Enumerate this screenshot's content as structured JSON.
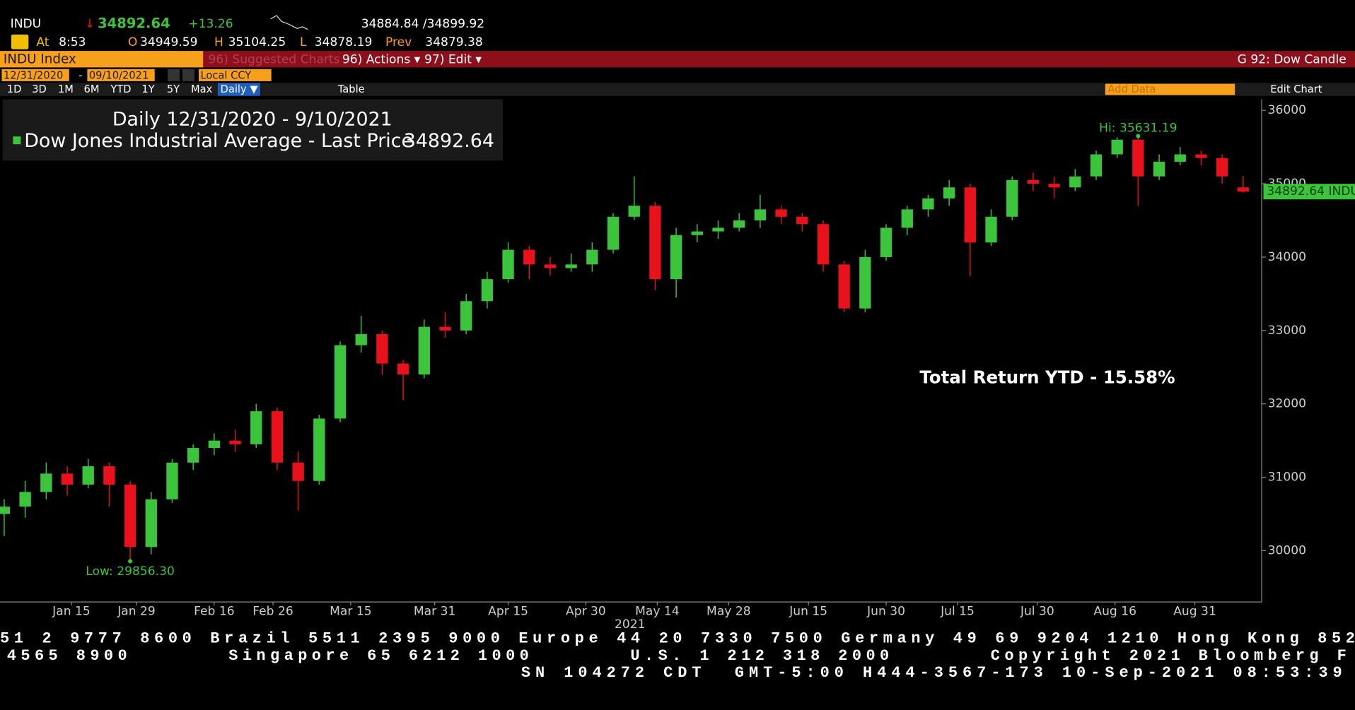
{
  "header": {
    "ticker": "INDU",
    "arrow": "↓",
    "last": "34892.64",
    "change": "+13.26",
    "bidask": "34884.84 /34899.92",
    "at": "At",
    "time": "8:53",
    "o_label": "O",
    "open": "34949.59",
    "h_label": "H",
    "high": "35104.25",
    "l_label": "L",
    "low": "34878.19",
    "prev_label": "Prev",
    "prev": "34879.38"
  },
  "menu": {
    "security": "INDU Index",
    "suggested": "96) Suggested Charts",
    "actions": "96) Actions ▾",
    "edit": "97) Edit ▾",
    "function": "G 92: Dow Candle"
  },
  "toolbar": {
    "start_date": "12/31/2020",
    "dash": "-",
    "end_date": "09/10/2021",
    "currency": "Local CCY",
    "ranges": [
      "1D",
      "3D",
      "1M",
      "6M",
      "YTD",
      "1Y",
      "5Y",
      "Max"
    ],
    "frequency": "Daily ▼",
    "table": "Table",
    "add_data": "Add Data",
    "edit_chart": "Edit Chart"
  },
  "chart_data": {
    "type": "candlestick",
    "title": "Daily 12/31/2020 - 9/10/2021",
    "series": [
      {
        "name": "Dow Jones Industrial Average - Last Price",
        "last_label": "34892.64",
        "up_color": "#3cc43c",
        "down_color": "#e8121c",
        "values": [
          [
            30500,
            30700,
            30200,
            30600
          ],
          [
            30600,
            30950,
            30450,
            30800
          ],
          [
            30800,
            31200,
            30700,
            31050
          ],
          [
            31050,
            31150,
            30750,
            30900
          ],
          [
            30900,
            31250,
            30850,
            31150
          ],
          [
            31150,
            31200,
            30600,
            30900
          ],
          [
            30900,
            30950,
            29856.3,
            30050
          ],
          [
            30050,
            30800,
            29950,
            30700
          ],
          [
            30700,
            31250,
            30650,
            31200
          ],
          [
            31200,
            31450,
            31100,
            31400
          ],
          [
            31400,
            31600,
            31300,
            31500
          ],
          [
            31500,
            31650,
            31350,
            31450
          ],
          [
            31450,
            32000,
            31400,
            31900
          ],
          [
            31900,
            31950,
            31100,
            31200
          ],
          [
            31200,
            31350,
            30550,
            30950
          ],
          [
            30950,
            31850,
            30900,
            31800
          ],
          [
            31800,
            32850,
            31750,
            32800
          ],
          [
            32800,
            33200,
            32700,
            32950
          ],
          [
            32950,
            33000,
            32400,
            32550
          ],
          [
            32550,
            32600,
            32050,
            32400
          ],
          [
            32400,
            33150,
            32350,
            33050
          ],
          [
            33050,
            33250,
            32900,
            33000
          ],
          [
            33000,
            33500,
            32950,
            33400
          ],
          [
            33400,
            33800,
            33300,
            33700
          ],
          [
            33700,
            34200,
            33650,
            34100
          ],
          [
            34100,
            34150,
            33700,
            33900
          ],
          [
            33900,
            34000,
            33750,
            33850
          ],
          [
            33850,
            34050,
            33800,
            33900
          ],
          [
            33900,
            34200,
            33800,
            34100
          ],
          [
            34100,
            34600,
            34050,
            34550
          ],
          [
            34550,
            35100,
            34500,
            34700
          ],
          [
            34700,
            34750,
            33550,
            33700
          ],
          [
            33700,
            34400,
            33450,
            34300
          ],
          [
            34300,
            34450,
            34200,
            34350
          ],
          [
            34350,
            34500,
            34250,
            34400
          ],
          [
            34400,
            34600,
            34350,
            34500
          ],
          [
            34500,
            34850,
            34400,
            34650
          ],
          [
            34650,
            34700,
            34450,
            34550
          ],
          [
            34550,
            34600,
            34350,
            34450
          ],
          [
            34450,
            34500,
            33800,
            33900
          ],
          [
            33900,
            33950,
            33250,
            33300
          ],
          [
            33300,
            34100,
            33250,
            34000
          ],
          [
            34000,
            34450,
            33950,
            34400
          ],
          [
            34400,
            34700,
            34300,
            34650
          ],
          [
            34650,
            34850,
            34550,
            34800
          ],
          [
            34800,
            35050,
            34700,
            34950
          ],
          [
            34950,
            35000,
            33741,
            34200
          ],
          [
            34200,
            34650,
            34150,
            34550
          ],
          [
            34550,
            35100,
            34500,
            35050
          ],
          [
            35050,
            35150,
            34900,
            35000
          ],
          [
            35000,
            35100,
            34800,
            34950
          ],
          [
            34950,
            35200,
            34900,
            35100
          ],
          [
            35100,
            35450,
            35050,
            35400
          ],
          [
            35400,
            35631.19,
            35350,
            35600
          ],
          [
            35600,
            35650,
            34700,
            35100
          ],
          [
            35100,
            35400,
            35050,
            35300
          ],
          [
            35300,
            35500,
            35250,
            35400
          ],
          [
            35400,
            35450,
            35250,
            35350
          ],
          [
            35350,
            35400,
            35000,
            35100
          ],
          [
            34949.59,
            35104.25,
            34878.19,
            34892.64
          ]
        ]
      }
    ],
    "xlim": [
      -0.2,
      59.8
    ],
    "xticks": [
      {
        "value": 3.2,
        "label": "Jan 15"
      },
      {
        "value": 6.3,
        "label": "Jan 29"
      },
      {
        "value": 10.0,
        "label": "Feb 16"
      },
      {
        "value": 12.8,
        "label": "Feb 26"
      },
      {
        "value": 16.5,
        "label": "Mar 15"
      },
      {
        "value": 20.5,
        "label": "Mar 31"
      },
      {
        "value": 24.0,
        "label": "Apr 15"
      },
      {
        "value": 27.7,
        "label": "Apr 30"
      },
      {
        "value": 31.1,
        "label": "May 14"
      },
      {
        "value": 34.5,
        "label": "May 28"
      },
      {
        "value": 38.3,
        "label": "Jun 15"
      },
      {
        "value": 42.0,
        "label": "Jun 30"
      },
      {
        "value": 45.4,
        "label": "Jul 15"
      },
      {
        "value": 49.2,
        "label": "Jul 30"
      },
      {
        "value": 52.9,
        "label": "Aug 16"
      },
      {
        "value": 56.7,
        "label": "Aug 31"
      }
    ],
    "year_label": "2021",
    "ylim": [
      29300,
      36150
    ],
    "yticks": [
      30000,
      31000,
      32000,
      33000,
      34000,
      35000,
      36000
    ],
    "grid": false,
    "annotations": {
      "high": "Hi: 35631.19",
      "low": "Low: 29856.30",
      "last_tag": "34892.64 INDU",
      "total_return": "Total Return YTD - 15.58%"
    }
  },
  "footer": {
    "line1": "51 2 9777 8600 Brazil 5511 2395 9000 Europe 44 20 7330 7500 Germany 49 69 9204 1210 Hong Kong 852",
    "line2": "4565 8900       Singapore 65 6212 1000       U.S. 1 212 318 2000       Copyright 2021 Bloomberg F",
    "line3": "SN 104272 CDT  GMT-5:00 H444-3567-173 10-Sep-2021 08:53:39"
  }
}
